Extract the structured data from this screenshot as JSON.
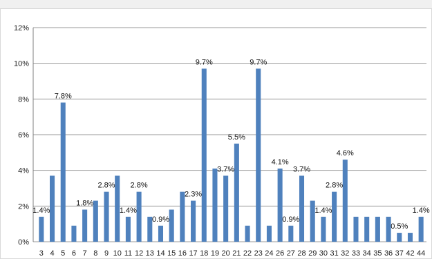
{
  "chart_data": {
    "type": "bar",
    "title": "",
    "xlabel": "",
    "ylabel": "",
    "ylim": [
      0,
      12
    ],
    "yticks": [
      "0%",
      "2%",
      "4%",
      "6%",
      "8%",
      "10%",
      "12%"
    ],
    "grid": true,
    "legend": "none",
    "bar_color": "#4f81bd",
    "categories": [
      "3",
      "4",
      "5",
      "6",
      "7",
      "8",
      "9",
      "10",
      "11",
      "12",
      "13",
      "14",
      "15",
      "16",
      "17",
      "18",
      "19",
      "20",
      "21",
      "22",
      "23",
      "24",
      "26",
      "27",
      "28",
      "29",
      "30",
      "31",
      "32",
      "33",
      "34",
      "35",
      "36",
      "37",
      "42",
      "44"
    ],
    "values": [
      1.4,
      3.7,
      7.8,
      0.9,
      1.8,
      2.3,
      2.8,
      3.7,
      1.4,
      2.8,
      1.4,
      0.9,
      1.8,
      2.8,
      2.3,
      9.7,
      4.1,
      3.7,
      5.5,
      0.9,
      9.7,
      0.9,
      4.1,
      0.9,
      3.7,
      2.3,
      1.4,
      2.8,
      4.6,
      1.4,
      1.4,
      1.4,
      1.4,
      0.5,
      0.5,
      1.4
    ],
    "data_labels": [
      {
        "index": 0,
        "text": "1.4%"
      },
      {
        "index": 2,
        "text": "7.8%"
      },
      {
        "index": 4,
        "text": "1.8%"
      },
      {
        "index": 6,
        "text": "2.8%"
      },
      {
        "index": 8,
        "text": "1.4%"
      },
      {
        "index": 9,
        "text": "2.8%"
      },
      {
        "index": 11,
        "text": "0.9%"
      },
      {
        "index": 14,
        "text": "2.3%"
      },
      {
        "index": 15,
        "text": "9.7%"
      },
      {
        "index": 17,
        "text": "3.7%"
      },
      {
        "index": 18,
        "text": "5.5%"
      },
      {
        "index": 20,
        "text": "9.7%"
      },
      {
        "index": 22,
        "text": "4.1%"
      },
      {
        "index": 23,
        "text": "0.9%"
      },
      {
        "index": 24,
        "text": "3.7%"
      },
      {
        "index": 26,
        "text": "1.4%"
      },
      {
        "index": 27,
        "text": "2.8%"
      },
      {
        "index": 28,
        "text": "4.6%"
      },
      {
        "index": 33,
        "text": "0.5%"
      },
      {
        "index": 35,
        "text": "1.4%"
      }
    ]
  }
}
